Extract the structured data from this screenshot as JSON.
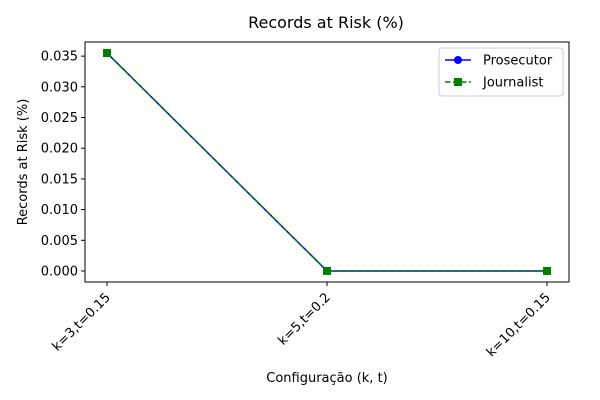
{
  "chart_data": {
    "type": "line",
    "title": "Records at Risk (%)",
    "xlabel": "Configuração (k, t)",
    "ylabel": "Records at Risk (%)",
    "categories": [
      "k=3,t=0.15",
      "k=5,t=0.2",
      "k=10,t=0.15"
    ],
    "series": [
      {
        "name": "Prosecutor",
        "values": [
          0.0355,
          0.0,
          0.0
        ],
        "color": "#0000ff",
        "marker": "circle",
        "line_style": "solid"
      },
      {
        "name": "Journalist",
        "values": [
          0.0355,
          0.0,
          0.0
        ],
        "color": "#008000",
        "marker": "square",
        "line_style": "dashed"
      }
    ],
    "ylim": [
      -0.0018,
      0.0373
    ],
    "yticks": [
      0.0,
      0.005,
      0.01,
      0.015,
      0.02,
      0.025,
      0.03,
      0.035
    ],
    "ytick_labels": [
      "0.000",
      "0.005",
      "0.010",
      "0.015",
      "0.020",
      "0.025",
      "0.030",
      "0.035"
    ],
    "grid": false,
    "legend_position": "top-right"
  }
}
